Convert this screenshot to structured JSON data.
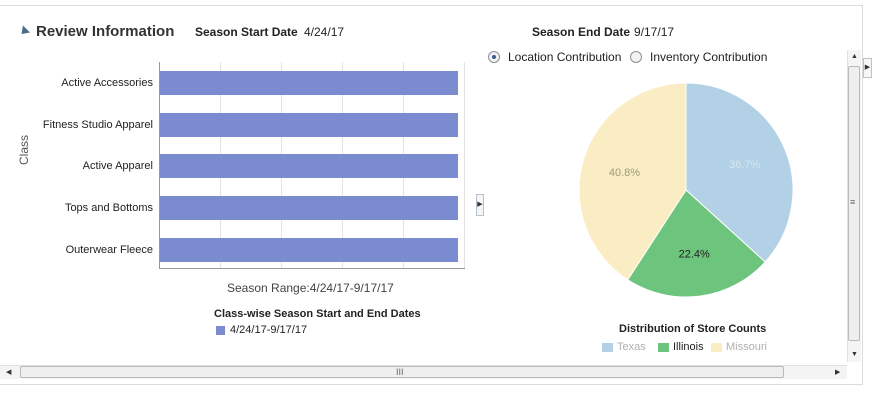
{
  "header": {
    "title": "Review Information",
    "season_start_label": "Season Start Date",
    "season_start_value": "4/24/17",
    "season_end_label": "Season End Date",
    "season_end_value": "9/17/17"
  },
  "radio_options": [
    {
      "label": "Location Contribution",
      "selected": true
    },
    {
      "label": "Inventory Contribution",
      "selected": false
    }
  ],
  "chart_data": [
    {
      "type": "bar",
      "orientation": "horizontal",
      "categories": [
        "Active Accessories",
        "Fitness Studio Apparel",
        "Active Apparel",
        "Tops and Bottoms",
        "Outerwear Fleece"
      ],
      "series": [
        {
          "name": "4/24/17-9/17/17",
          "values": [
            1,
            1,
            1,
            1,
            1
          ]
        }
      ],
      "ylabel": "Class",
      "xlabel": "Season Range:4/24/17-9/17/17",
      "legend_title": "Class-wise Season Start and End Dates",
      "legend_position": "bottom",
      "grid": true,
      "color": "#7b8bd0"
    },
    {
      "type": "pie",
      "title": "Distribution of Store Counts",
      "slices": [
        {
          "label": "Texas",
          "value": 36.7,
          "display": "36.7%",
          "color": "#b3d1e6"
        },
        {
          "label": "Illinois",
          "value": 22.4,
          "display": "22.4%",
          "color": "#6cc47d"
        },
        {
          "label": "Missouri",
          "value": 40.8,
          "display": "40.8%",
          "color": "#fbedc3"
        }
      ],
      "legend_position": "bottom"
    }
  ],
  "scrollbar": {
    "h_grip": "III",
    "v_grip": "≡"
  },
  "colors": {
    "bar": "#7b8bd0",
    "accent": "#3a5f8a"
  }
}
